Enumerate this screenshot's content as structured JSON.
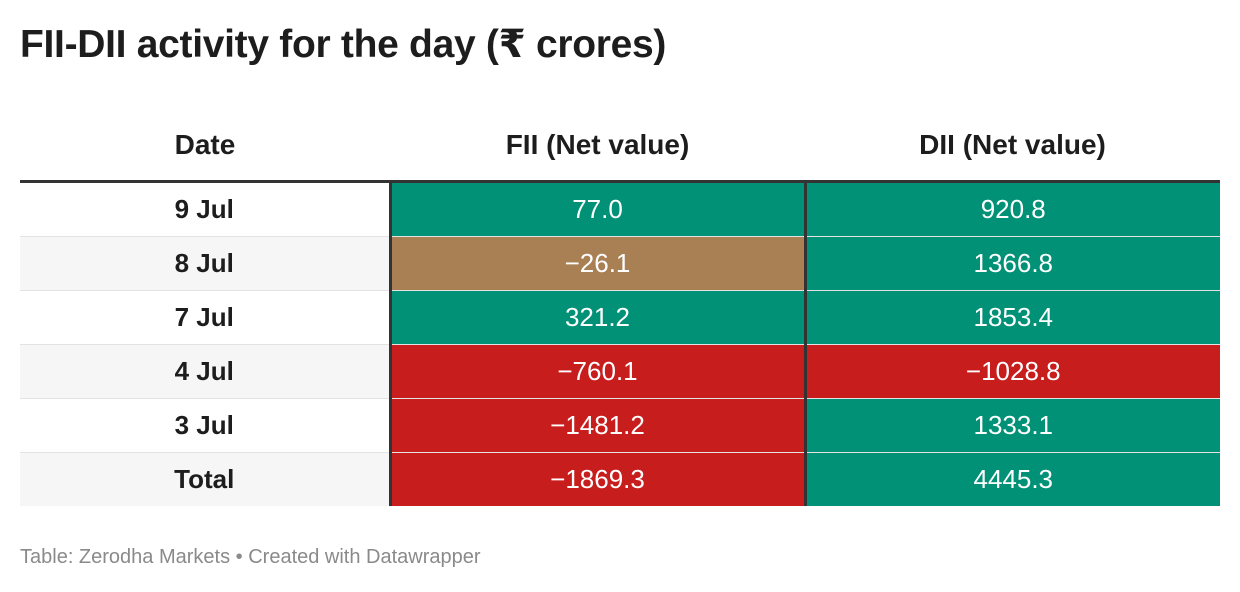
{
  "title": "FII-DII activity for the day (₹ crores)",
  "footer": "Table: Zerodha Markets • Created with Datawrapper",
  "colors": {
    "positive": "#009177",
    "negative": "#c71e1d",
    "slight_negative": "#a97f54",
    "header_border": "#333333",
    "alt_row": "#f6f6f6"
  },
  "chart_data": {
    "type": "table",
    "columns": [
      "Date",
      "FII (Net value)",
      "DII (Net value)"
    ],
    "rows": [
      {
        "date": "9 Jul",
        "fii": "77.0",
        "dii": "920.8",
        "fii_color": "positive",
        "dii_color": "positive"
      },
      {
        "date": "8 Jul",
        "fii": "−26.1",
        "dii": "1366.8",
        "fii_color": "slight_negative",
        "dii_color": "positive"
      },
      {
        "date": "7 Jul",
        "fii": "321.2",
        "dii": "1853.4",
        "fii_color": "positive",
        "dii_color": "positive"
      },
      {
        "date": "4 Jul",
        "fii": "−760.1",
        "dii": "−1028.8",
        "fii_color": "negative",
        "dii_color": "negative"
      },
      {
        "date": "3 Jul",
        "fii": "−1481.2",
        "dii": "1333.1",
        "fii_color": "negative",
        "dii_color": "positive"
      },
      {
        "date": "Total",
        "fii": "−1869.3",
        "dii": "4445.3",
        "fii_color": "negative",
        "dii_color": "positive"
      }
    ]
  }
}
